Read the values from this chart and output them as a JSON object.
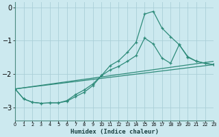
{
  "xlabel": "Humidex (Indice chaleur)",
  "xlim": [
    0,
    23
  ],
  "ylim": [
    -3.4,
    0.15
  ],
  "yticks": [
    0,
    -1,
    -2,
    -3
  ],
  "xtick_labels": [
    "0",
    "1",
    "2",
    "3",
    "4",
    "5",
    "6",
    "7",
    "8",
    "9",
    "10",
    "11",
    "12",
    "13",
    "14",
    "15",
    "16",
    "17",
    "18",
    "19",
    "20",
    "21",
    "22",
    "23"
  ],
  "bg_color": "#cce9ef",
  "line_color": "#2e8b7a",
  "grid_color": "#aacfd8",
  "curve1": {
    "x": [
      0,
      1,
      2,
      3,
      4,
      5,
      6,
      7,
      8,
      9,
      10,
      11,
      12,
      13,
      14,
      15,
      16,
      17,
      18,
      19,
      20,
      21,
      22,
      23
    ],
    "y": [
      -2.45,
      -2.75,
      -2.85,
      -2.88,
      -2.87,
      -2.87,
      -2.82,
      -2.68,
      -2.55,
      -2.35,
      -2.05,
      -1.75,
      -1.6,
      -1.35,
      -1.05,
      -0.2,
      -0.12,
      -0.62,
      -0.88,
      -1.12,
      -1.5,
      -1.62,
      -1.68,
      -1.72
    ]
  },
  "curve2": {
    "x": [
      0,
      1,
      2,
      3,
      4,
      5,
      6,
      7,
      8,
      9,
      10,
      11,
      12,
      13,
      14,
      15,
      16,
      17,
      18,
      19,
      20,
      21,
      22,
      23
    ],
    "y": [
      -2.45,
      -2.75,
      -2.85,
      -2.88,
      -2.87,
      -2.87,
      -2.8,
      -2.62,
      -2.48,
      -2.3,
      -2.05,
      -1.88,
      -1.77,
      -1.62,
      -1.45,
      -0.92,
      -1.1,
      -1.52,
      -1.68,
      -1.12,
      -1.48,
      -1.62,
      -1.68,
      -1.72
    ]
  },
  "trend1": {
    "x": [
      0,
      23
    ],
    "y": [
      -2.45,
      -1.62
    ]
  },
  "trend2": {
    "x": [
      0,
      23
    ],
    "y": [
      -2.45,
      -1.72
    ]
  }
}
